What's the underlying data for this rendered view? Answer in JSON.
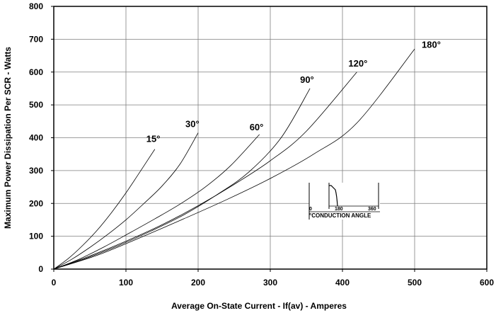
{
  "chart_data": {
    "type": "line",
    "title": "",
    "xlabel": "Average On-State Current - If(av) - Amperes",
    "ylabel": "Maximum Power Dissipation Per SCR - Watts",
    "xlim": [
      0,
      600
    ],
    "ylim": [
      0,
      800
    ],
    "x_ticks": [
      "0",
      "100",
      "200",
      "300",
      "400",
      "500",
      "600"
    ],
    "y_ticks": [
      "0",
      "100",
      "200",
      "300",
      "400",
      "500",
      "600",
      "700",
      "800"
    ],
    "grid": true,
    "legend": "none",
    "series": [
      {
        "name": "15°",
        "x": [
          0,
          20,
          40,
          60,
          80,
          100,
          120,
          140
        ],
        "y": [
          0,
          32,
          72,
          118,
          172,
          232,
          298,
          365
        ]
      },
      {
        "name": "30°",
        "x": [
          0,
          25,
          50,
          75,
          100,
          125,
          150,
          175,
          200
        ],
        "y": [
          0,
          30,
          66,
          106,
          150,
          200,
          253,
          320,
          415
        ]
      },
      {
        "name": "60°",
        "x": [
          0,
          35,
          70,
          105,
          140,
          175,
          210,
          245,
          285
        ],
        "y": [
          0,
          30,
          68,
          110,
          153,
          198,
          250,
          315,
          410
        ]
      },
      {
        "name": "90°",
        "x": [
          0,
          45,
          90,
          135,
          180,
          225,
          270,
          315,
          355
        ],
        "y": [
          0,
          33,
          72,
          116,
          165,
          225,
          295,
          400,
          550
        ]
      },
      {
        "name": "120°",
        "x": [
          0,
          50,
          100,
          150,
          200,
          250,
          300,
          350,
          420
        ],
        "y": [
          0,
          40,
          85,
          135,
          193,
          258,
          330,
          420,
          600
        ]
      },
      {
        "name": "180°",
        "x": [
          0,
          60,
          120,
          180,
          240,
          300,
          360,
          420,
          500
        ],
        "y": [
          0,
          42,
          96,
          153,
          212,
          276,
          350,
          445,
          670
        ]
      }
    ],
    "inset": {
      "tick_labels": [
        "0",
        "180",
        "360"
      ],
      "caption": "°CONDUCTION ANGLE"
    }
  }
}
